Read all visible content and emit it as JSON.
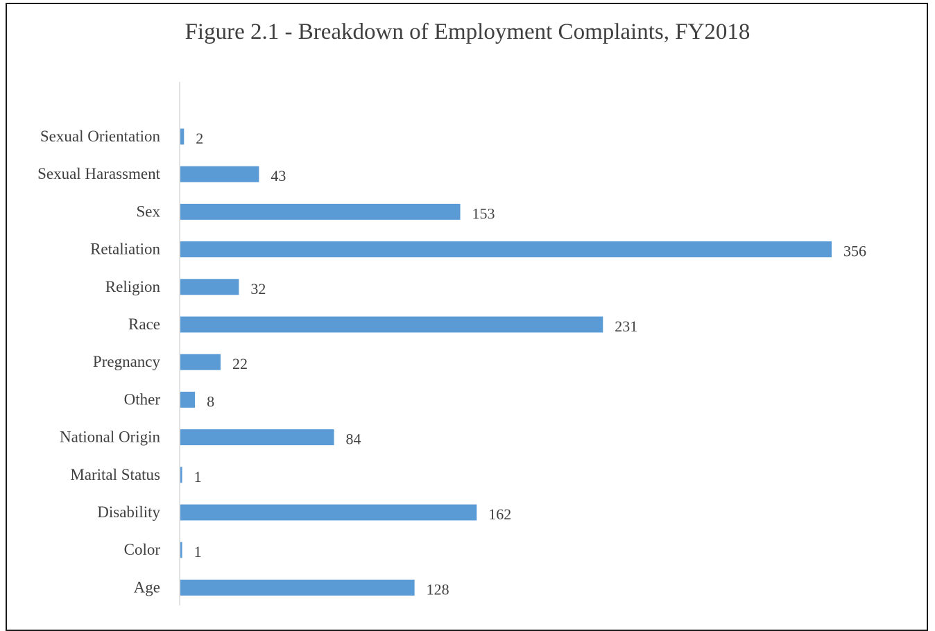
{
  "chart_data": {
    "type": "bar",
    "orientation": "horizontal",
    "title": "Figure 2.1 - Breakdown of Employment Complaints, FY2018",
    "xlabel": "",
    "ylabel": "",
    "categories": [
      "Sexual Orientation",
      "Sexual Harassment",
      "Sex",
      "Retaliation",
      "Religion",
      "Race",
      "Pregnancy",
      "Other",
      "National Origin",
      "Marital Status",
      "Disability",
      "Color",
      "Age"
    ],
    "values": [
      2,
      43,
      153,
      356,
      32,
      231,
      22,
      8,
      84,
      1,
      162,
      1,
      128
    ],
    "xlim": [
      0,
      356
    ],
    "data_labels": true,
    "grid": false,
    "legend": "none",
    "bar_color": "#5b9bd5",
    "axis_color": "#d9d9d9",
    "text_color": "#404040"
  }
}
